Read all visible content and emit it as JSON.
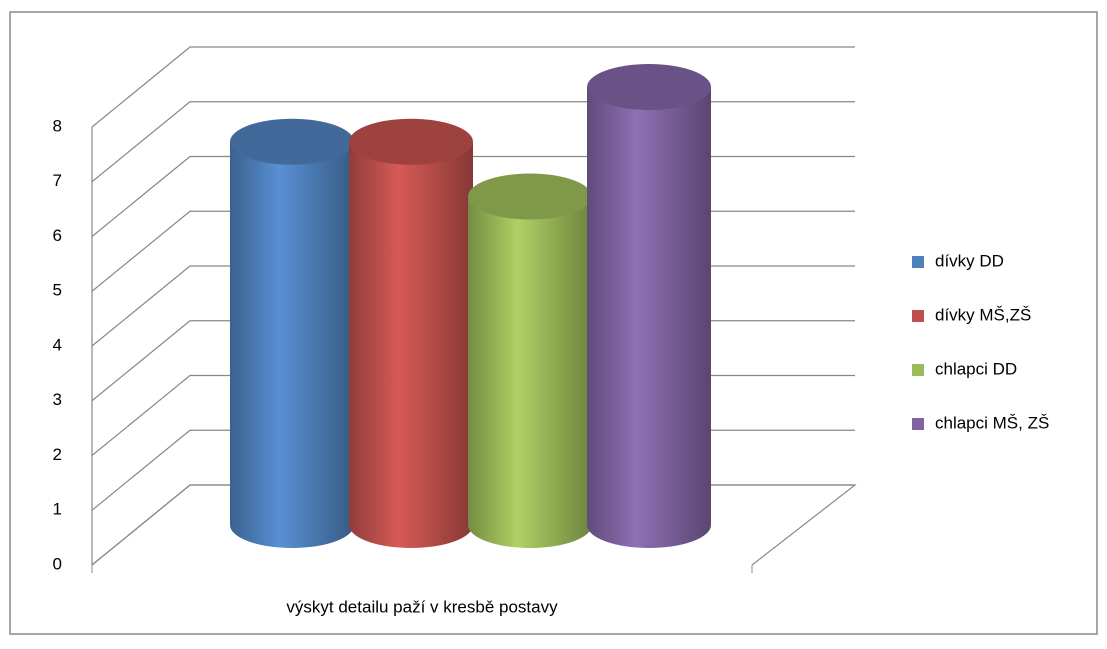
{
  "chart_data": {
    "type": "bar",
    "categories": [
      "výskyt detailu paží v kresbě postavy"
    ],
    "series": [
      {
        "name": "dívky DD",
        "color": "#4f81bd",
        "values": [
          7
        ]
      },
      {
        "name": "dívky MŠ,ZŠ",
        "color": "#c0504d",
        "values": [
          7
        ]
      },
      {
        "name": "chlapci DD",
        "color": "#9bbb59",
        "values": [
          6
        ]
      },
      {
        "name": "chlapci MŠ, ZŠ",
        "color": "#8064a2",
        "values": [
          8
        ]
      }
    ],
    "ylim": [
      0,
      8
    ],
    "yticks": [
      0,
      1,
      2,
      3,
      4,
      5,
      6,
      7,
      8
    ],
    "grid": true,
    "legend": "right"
  }
}
